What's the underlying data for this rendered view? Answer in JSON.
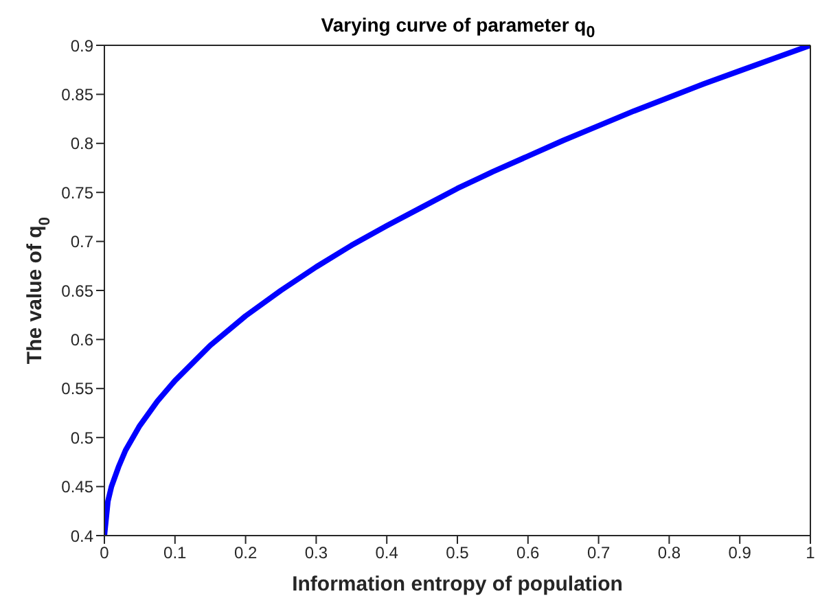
{
  "chart_data": {
    "type": "line",
    "title": "Varying curve of parameter q$_{0}$",
    "xlabel": "Information entropy of population",
    "ylabel": "The value of q$_{0}$",
    "x": [
      0,
      0.005,
      0.01,
      0.02,
      0.03,
      0.05,
      0.075,
      0.1,
      0.15,
      0.2,
      0.25,
      0.3,
      0.35,
      0.4,
      0.45,
      0.5,
      0.55,
      0.6,
      0.65,
      0.7,
      0.75,
      0.8,
      0.85,
      0.9,
      0.95,
      1
    ],
    "series": [
      {
        "color": "#0000ff",
        "values": [
          0.4,
          0.435,
          0.45,
          0.47,
          0.487,
          0.512,
          0.537,
          0.558,
          0.594,
          0.624,
          0.65,
          0.674,
          0.696,
          0.716,
          0.735,
          0.754,
          0.771,
          0.787,
          0.803,
          0.818,
          0.833,
          0.847,
          0.861,
          0.874,
          0.887,
          0.9
        ]
      }
    ],
    "xlim": [
      0,
      1
    ],
    "xticks": [
      0,
      0.1,
      0.2,
      0.3,
      0.4,
      0.5,
      0.6,
      0.7,
      0.8,
      0.9,
      1
    ],
    "ylim": [
      0.4,
      0.9
    ],
    "yticks": [
      0.4,
      0.45,
      0.5,
      0.55,
      0.6,
      0.65,
      0.7,
      0.75,
      0.8,
      0.85,
      0.9
    ],
    "grid": false,
    "legend": false,
    "marker": "none",
    "line_style": "solid"
  }
}
